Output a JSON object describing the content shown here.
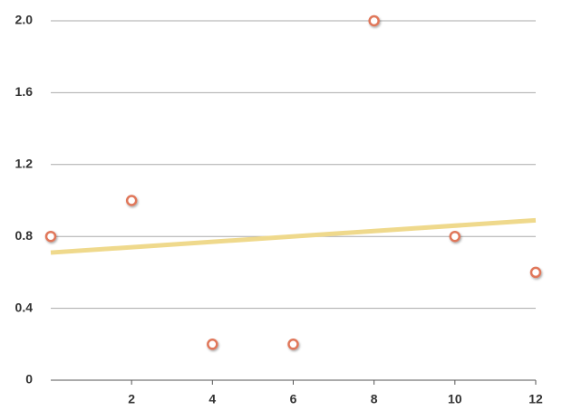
{
  "chart_data": {
    "type": "scatter",
    "x": [
      0,
      2,
      4,
      6,
      8,
      10,
      12
    ],
    "values": [
      0.8,
      1.0,
      0.2,
      0.2,
      2.0,
      0.8,
      0.6
    ],
    "color": "#e0775a",
    "trendline": {
      "x": [
        0,
        12
      ],
      "values": [
        0.71,
        0.89
      ],
      "color": "#efd98c"
    },
    "xlim": [
      0,
      12
    ],
    "xticks": [
      2,
      4,
      6,
      8,
      10,
      12
    ],
    "ylim": [
      0,
      2
    ],
    "yticks": [
      0,
      0.4,
      0.8,
      1.2,
      1.6,
      {
        "value": 2,
        "label": "2.0"
      }
    ],
    "grid": true
  }
}
